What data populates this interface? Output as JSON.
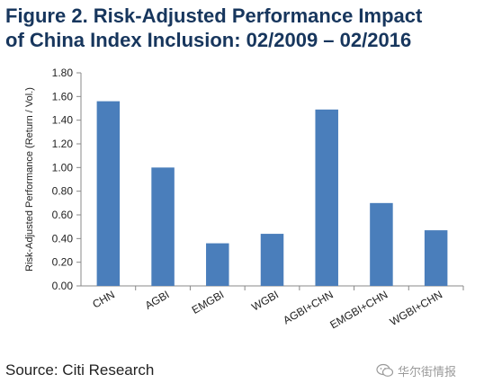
{
  "title_lines": [
    "Figure 2. Risk-Adjusted Performance Impact",
    "of China Index Inclusion: 02/2009 – 02/2016"
  ],
  "source": "Source: Citi Research",
  "watermark": "华尔街情报",
  "chart_data": {
    "type": "bar",
    "categories": [
      "CHN",
      "AGBI",
      "EMGBI",
      "WGBI",
      "AGBI+CHN",
      "EMGBI+CHN",
      "WGBI+CHN"
    ],
    "values": [
      1.56,
      1.0,
      0.36,
      0.44,
      1.49,
      0.7,
      0.47
    ],
    "ylabel": "Risk-Adjusted Performance (Return / Vol.)",
    "xlabel": "",
    "ylim": [
      0,
      1.8
    ],
    "yticks": [
      "0.00",
      "0.20",
      "0.40",
      "0.60",
      "0.80",
      "1.00",
      "1.20",
      "1.40",
      "1.60",
      "1.80"
    ],
    "bar_color": "#4a7ebb",
    "grid": false,
    "legend": "none"
  }
}
